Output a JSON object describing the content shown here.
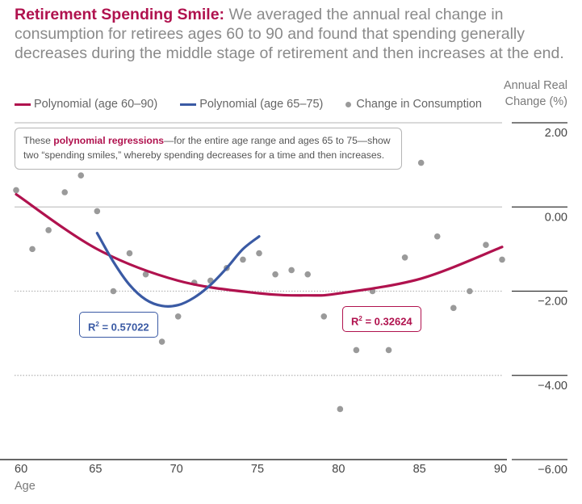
{
  "title": {
    "lead": "Retirement Spending Smile:",
    "rest": "We averaged the annual real change in consumption for retirees ages 60 to 90 and found that spending generally decreases during the middle stage of retirement and then increases at the end."
  },
  "colors": {
    "poly_60_90": "#b0124e",
    "poly_65_75": "#3a5aa4",
    "points": "#9a9a9a",
    "grid_solid": "#c4c4c4",
    "grid_dotted": "#b5b5b5",
    "axis": "#333333"
  },
  "annotation": {
    "prefix": "These",
    "bold": "polynomial regressions",
    "suffix": "—for the entire age range and ages 65 to 75—show two “spending smiles,” whereby spending decreases for a time and then increases."
  },
  "chart_data": {
    "type": "scatter",
    "title": "Retirement Spending Smile",
    "xlabel": "Age",
    "ylabel": "Annual Real Change (%)",
    "ylabel_lines": [
      "Annual Real",
      "Change (%)"
    ],
    "xlim": [
      60,
      90
    ],
    "ylim": [
      -6,
      2
    ],
    "xticks": [
      60,
      65,
      70,
      75,
      80,
      85,
      90
    ],
    "yticks": [
      2,
      0,
      -2,
      -4,
      -6
    ],
    "ytick_labels": [
      "2.00",
      "0.00",
      "−2.00",
      "−4.00",
      "−6.00"
    ],
    "legend": [
      "Polynomial (age 60–90)",
      "Polynomial (age 65–75)",
      "Change in Consumption"
    ],
    "series": [
      {
        "name": "Change in Consumption",
        "x": [
          60,
          61,
          62,
          63,
          64,
          65,
          66,
          67,
          68,
          69,
          70,
          71,
          72,
          73,
          74,
          75,
          76,
          77,
          78,
          79,
          80,
          81,
          82,
          83,
          84,
          85,
          86,
          87,
          88,
          89,
          90
        ],
        "values": [
          0.4,
          -1.0,
          -0.55,
          0.35,
          0.75,
          -0.1,
          -2.0,
          -1.1,
          -1.6,
          -3.2,
          -2.6,
          -1.8,
          -1.75,
          -1.45,
          -1.25,
          -1.1,
          -1.6,
          -1.5,
          -1.6,
          -2.6,
          -4.8,
          -3.4,
          -2.0,
          -3.4,
          -1.2,
          1.05,
          -0.7,
          -2.4,
          -2.0,
          -0.9,
          -1.25
        ]
      },
      {
        "name": "Polynomial (age 60–90)",
        "x": [
          60,
          65,
          70,
          75,
          78,
          80,
          85,
          90
        ],
        "values": [
          0.3,
          -1.0,
          -1.75,
          -2.05,
          -2.1,
          -2.05,
          -1.7,
          -0.95
        ]
      },
      {
        "name": "Polynomial (age 65–75)",
        "x": [
          65,
          66,
          67,
          68,
          69,
          70,
          71,
          72,
          73,
          74,
          75
        ],
        "values": [
          -0.62,
          -1.3,
          -1.85,
          -2.2,
          -2.35,
          -2.33,
          -2.15,
          -1.85,
          -1.45,
          -1.0,
          -0.7
        ]
      }
    ],
    "r2_labels": [
      {
        "series": "Polynomial (age 65–75)",
        "r2_prefix": "R",
        "sup": "2",
        "value": " = 0.57022"
      },
      {
        "series": "Polynomial (age 60–90)",
        "r2_prefix": "R",
        "sup": "2",
        "value": " = 0.32624"
      }
    ]
  }
}
